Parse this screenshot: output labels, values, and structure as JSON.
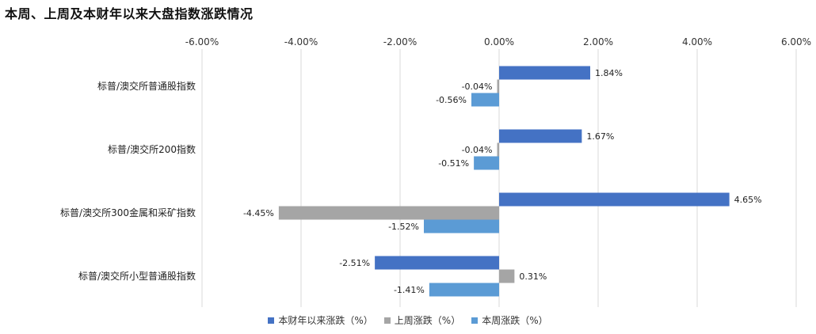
{
  "chart_data": {
    "type": "bar",
    "orientation": "horizontal",
    "title": "本周、上周及本财年以来大盘指数涨跌情况",
    "categories": [
      "标普/澳交所普通股指数",
      "标普/澳交所200指数",
      "标普/澳交所300金属和采矿指数",
      "标普/澳交所小型普通股指数"
    ],
    "series": [
      {
        "name": "本财年以来涨跌（%）",
        "color": "#4472C4",
        "values": [
          1.84,
          1.67,
          4.65,
          -2.51
        ],
        "labels": [
          "1.84%",
          "1.67%",
          "4.65%",
          "-2.51%"
        ]
      },
      {
        "name": "上周涨跌（%）",
        "color": "#A5A5A5",
        "values": [
          -0.04,
          -0.04,
          -4.45,
          0.31
        ],
        "labels": [
          "-0.04%",
          "-0.04%",
          "-4.45%",
          "0.31%"
        ]
      },
      {
        "name": "本周涨跌（%）",
        "color": "#5B9BD5",
        "values": [
          -0.56,
          -0.51,
          -1.52,
          -1.41
        ],
        "labels": [
          "-0.56%",
          "-0.51%",
          "-1.52%",
          "-1.41%"
        ]
      }
    ],
    "xlim": [
      -6,
      6
    ],
    "xticks": [
      -6,
      -4,
      -2,
      0,
      2,
      4,
      6
    ],
    "xtick_labels": [
      "-6.00%",
      "-4.00%",
      "-2.00%",
      "0.00%",
      "2.00%",
      "4.00%",
      "6.00%"
    ],
    "axis_position": "top",
    "grid": true,
    "legend_position": "bottom"
  }
}
